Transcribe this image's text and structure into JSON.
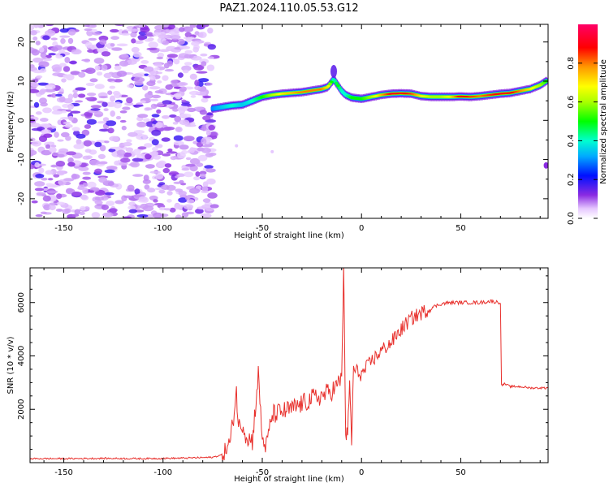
{
  "title": "PAZ1.2024.110.05.53.G12",
  "chart_data": [
    {
      "type": "heatmap",
      "xlabel": "Height of straight line (km)",
      "ylabel": "Frequency (Hz)",
      "xlim": [
        -167,
        94
      ],
      "ylim": [
        -25,
        24.5
      ],
      "xticks": [
        -150,
        -100,
        -50,
        0,
        50
      ],
      "xtick_labels": [
        "-150",
        "-100",
        "-50",
        "0",
        "50"
      ],
      "yticks": [
        -20,
        -10,
        0,
        10,
        20
      ],
      "ytick_labels": [
        "-20",
        "-10",
        "0",
        "10",
        "20"
      ],
      "colorbar": {
        "label": "Normalized spectral amplitude",
        "range": [
          0,
          1
        ],
        "ticks": [
          0.0,
          0.2,
          0.4,
          0.6,
          0.8
        ],
        "tick_labels": [
          "0.0",
          "0.2",
          "0.4",
          "0.6",
          "0.8"
        ]
      },
      "noise_region_x": [
        -167,
        -74
      ],
      "ridge": {
        "x": [
          -75,
          -70,
          -65,
          -60,
          -55,
          -50,
          -45,
          -40,
          -35,
          -30,
          -25,
          -20,
          -17,
          -14,
          -12,
          -10,
          -8,
          -5,
          0,
          5,
          10,
          15,
          20,
          25,
          30,
          35,
          40,
          45,
          50,
          55,
          60,
          65,
          70,
          75,
          80,
          85,
          90,
          93
        ],
        "freq": [
          3.0,
          3.4,
          3.8,
          4.0,
          5.0,
          6.0,
          6.5,
          6.8,
          7.0,
          7.2,
          7.6,
          8.0,
          8.5,
          10.5,
          9.0,
          7.5,
          6.5,
          5.8,
          5.5,
          6.0,
          6.5,
          6.8,
          6.9,
          6.8,
          6.2,
          6.0,
          6.0,
          6.0,
          6.1,
          6.0,
          6.2,
          6.5,
          6.8,
          7.0,
          7.5,
          8.0,
          9.0,
          10.0
        ],
        "amplitude": [
          0.3,
          0.35,
          0.4,
          0.35,
          0.4,
          0.5,
          0.6,
          0.7,
          0.75,
          0.8,
          0.8,
          0.8,
          0.7,
          0.4,
          0.5,
          0.4,
          0.4,
          0.5,
          0.5,
          0.6,
          0.75,
          0.9,
          0.9,
          0.85,
          0.7,
          0.6,
          0.6,
          0.7,
          0.9,
          0.85,
          0.8,
          0.85,
          0.9,
          0.9,
          0.8,
          0.7,
          0.6,
          0.5
        ]
      }
    },
    {
      "type": "line",
      "xlabel": "Height of straight line (km)",
      "ylabel": "SNR (10 * v/v)",
      "xlim": [
        -167,
        94
      ],
      "ylim": [
        0,
        7300
      ],
      "xticks": [
        -150,
        -100,
        -50,
        0,
        50
      ],
      "xtick_labels": [
        "-150",
        "-100",
        "-50",
        "0",
        "50"
      ],
      "yticks": [
        2000,
        4000,
        6000
      ],
      "ytick_labels": [
        "2000",
        "4000",
        "6000"
      ],
      "line_color": "#e8302c",
      "x": [
        -167,
        -150,
        -130,
        -110,
        -90,
        -75,
        -70,
        -66,
        -63,
        -62,
        -60,
        -58,
        -55,
        -52,
        -50,
        -48,
        -45,
        -40,
        -35,
        -30,
        -25,
        -20,
        -15,
        -12,
        -10,
        -9,
        -8,
        -7,
        -6,
        -5,
        -4,
        0,
        5,
        10,
        15,
        20,
        25,
        30,
        35,
        40,
        45,
        50,
        55,
        60,
        65,
        70,
        70.5,
        72,
        75,
        80,
        85,
        90,
        94
      ],
      "y": [
        150,
        150,
        160,
        150,
        170,
        200,
        300,
        800,
        2700,
        1300,
        1500,
        1000,
        800,
        3300,
        900,
        600,
        1800,
        1900,
        2000,
        2200,
        2400,
        2500,
        2700,
        2900,
        3200,
        7300,
        1200,
        900,
        3000,
        800,
        3500,
        3300,
        3800,
        4200,
        4500,
        5000,
        5400,
        5600,
        5800,
        5950,
        6000,
        6000,
        6000,
        6000,
        6050,
        6000,
        2900,
        2950,
        2850,
        2850,
        2800,
        2800,
        2800
      ]
    }
  ]
}
